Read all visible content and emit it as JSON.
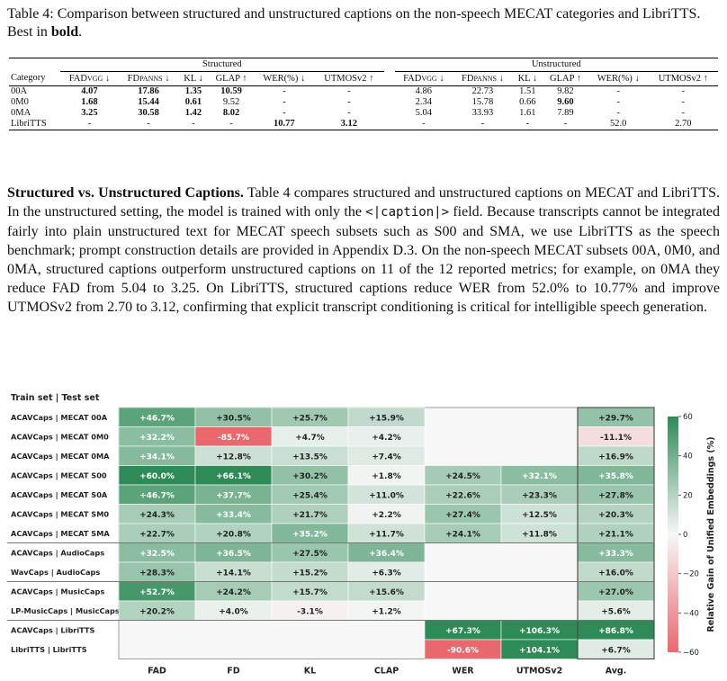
{
  "caption": {
    "label": "Table 4:",
    "text_before_bold": "Comparison between structured and unstructured captions on the non-speech MECAT categories and LibriTTS. Best in",
    "bold_word": "bold",
    "text_after_bold": "."
  },
  "table": {
    "group_structured": "Structured",
    "group_unstructured": "Unstructured",
    "header_category": "Category",
    "metric_headers": [
      {
        "base": "FAD",
        "sub": "VGG",
        "arrow": "↓"
      },
      {
        "base": "FD",
        "sub": "PANNS",
        "arrow": "↓"
      },
      {
        "base": "KL",
        "sub": "",
        "arrow": "↓"
      },
      {
        "base": "GLAP",
        "sub": "",
        "arrow": "↑"
      },
      {
        "base": "WER(%)",
        "sub": "",
        "arrow": "↓"
      },
      {
        "base": "UTMOSv2",
        "sub": "",
        "arrow": "↑"
      }
    ],
    "rows": [
      {
        "category": "00A",
        "structured": [
          {
            "v": "4.07",
            "b": true
          },
          {
            "v": "17.86",
            "b": true
          },
          {
            "v": "1.35",
            "b": true
          },
          {
            "v": "10.59",
            "b": true
          },
          {
            "v": "-",
            "b": false
          },
          {
            "v": "-",
            "b": false
          }
        ],
        "unstructured": [
          {
            "v": "4.86",
            "b": false
          },
          {
            "v": "22.73",
            "b": false
          },
          {
            "v": "1.51",
            "b": false
          },
          {
            "v": "9.82",
            "b": false
          },
          {
            "v": "-",
            "b": false
          },
          {
            "v": "-",
            "b": false
          }
        ]
      },
      {
        "category": "0M0",
        "structured": [
          {
            "v": "1.68",
            "b": true
          },
          {
            "v": "15.44",
            "b": true
          },
          {
            "v": "0.61",
            "b": true
          },
          {
            "v": "9.52",
            "b": false
          },
          {
            "v": "-",
            "b": false
          },
          {
            "v": "-",
            "b": false
          }
        ],
        "unstructured": [
          {
            "v": "2.34",
            "b": false
          },
          {
            "v": "15.78",
            "b": false
          },
          {
            "v": "0.66",
            "b": false
          },
          {
            "v": "9.60",
            "b": true
          },
          {
            "v": "-",
            "b": false
          },
          {
            "v": "-",
            "b": false
          }
        ]
      },
      {
        "category": "0MA",
        "structured": [
          {
            "v": "3.25",
            "b": true
          },
          {
            "v": "30.58",
            "b": true
          },
          {
            "v": "1.42",
            "b": true
          },
          {
            "v": "8.02",
            "b": true
          },
          {
            "v": "-",
            "b": false
          },
          {
            "v": "-",
            "b": false
          }
        ],
        "unstructured": [
          {
            "v": "5.04",
            "b": false
          },
          {
            "v": "33.93",
            "b": false
          },
          {
            "v": "1.61",
            "b": false
          },
          {
            "v": "7.89",
            "b": false
          },
          {
            "v": "-",
            "b": false
          },
          {
            "v": "-",
            "b": false
          }
        ]
      },
      {
        "category": "LibriTTS",
        "structured": [
          {
            "v": "-",
            "b": false
          },
          {
            "v": "-",
            "b": false
          },
          {
            "v": "-",
            "b": false
          },
          {
            "v": "-",
            "b": false
          },
          {
            "v": "10.77",
            "b": true
          },
          {
            "v": "3.12",
            "b": true
          }
        ],
        "unstructured": [
          {
            "v": "-",
            "b": false
          },
          {
            "v": "-",
            "b": false
          },
          {
            "v": "-",
            "b": false
          },
          {
            "v": "-",
            "b": false
          },
          {
            "v": "52.0",
            "b": false
          },
          {
            "v": "2.70",
            "b": false
          }
        ]
      }
    ]
  },
  "paragraph": {
    "run_in": "Structured vs. Unstructured Captions.",
    "text_1": " Table 4 compares structured and unstructured captions on MECAT and LibriTTS. In the unstructured setting, the model is trained with only the ",
    "code": "<|caption|>",
    "text_2": " field. Because transcripts cannot be integrated fairly into plain unstructured text for MECAT speech subsets such as S00 and SMA, we use LibriTTS as the speech benchmark; prompt construction details are provided in Appendix D.3. On the non-speech MECAT subsets 00A, 0M0, and 0MA, structured captions outperform unstructured captions on 11 of the 12 reported metrics; for example, on 0MA they reduce FAD from 5.04 to 3.25. On LibriTTS, structured captions reduce WER from 52.0% to 10.77% and improve UTMOSv2 from 2.70 to 3.12, confirming that explicit transcript conditioning is critical for intelligible speech generation."
  },
  "chart_data": {
    "type": "heatmap",
    "title": "",
    "row_axis_label": "Train set | Test set",
    "colorbar_label": "Relative Gain of Unified Embeddings (%)",
    "colorbar_range": [
      -60,
      60
    ],
    "colorbar_ticks": [
      60,
      40,
      20,
      0,
      -20,
      -40,
      -60
    ],
    "colorbar_tick_labels": [
      "60",
      "40",
      "20",
      "0",
      "−20",
      "−40",
      "−60"
    ],
    "colors": {
      "positive": "#2e8b57",
      "neutral": "#f7f7f7",
      "negative": "#e8686e"
    },
    "columns": [
      "FAD",
      "FD",
      "KL",
      "CLAP",
      "WER",
      "UTMOSv2",
      "Avg."
    ],
    "rows": [
      {
        "label": "ACAVCaps | MECAT 00A",
        "values": [
          46.7,
          30.5,
          25.7,
          15.9,
          null,
          null,
          29.7
        ],
        "texts": [
          "+46.7%",
          "+30.5%",
          "+25.7%",
          "+15.9%",
          "",
          "",
          "+29.7%"
        ]
      },
      {
        "label": "ACAVCaps | MECAT 0M0",
        "values": [
          32.2,
          -85.7,
          4.7,
          4.2,
          null,
          null,
          -11.1
        ],
        "texts": [
          "+32.2%",
          "-85.7%",
          "+4.7%",
          "+4.2%",
          "",
          "",
          "-11.1%"
        ]
      },
      {
        "label": "ACAVCaps | MECAT 0MA",
        "values": [
          34.1,
          12.8,
          13.5,
          7.4,
          null,
          null,
          16.9
        ],
        "texts": [
          "+34.1%",
          "+12.8%",
          "+13.5%",
          "+7.4%",
          "",
          "",
          "+16.9%"
        ]
      },
      {
        "label": "ACAVCaps | MECAT S00",
        "values": [
          60.0,
          66.1,
          30.2,
          1.8,
          24.5,
          32.1,
          35.8
        ],
        "texts": [
          "+60.0%",
          "+66.1%",
          "+30.2%",
          "+1.8%",
          "+24.5%",
          "+32.1%",
          "+35.8%"
        ]
      },
      {
        "label": "ACAVCaps | MECAT S0A",
        "values": [
          46.7,
          37.7,
          25.4,
          11.0,
          22.6,
          23.3,
          27.8
        ],
        "texts": [
          "+46.7%",
          "+37.7%",
          "+25.4%",
          "+11.0%",
          "+22.6%",
          "+23.3%",
          "+27.8%"
        ]
      },
      {
        "label": "ACAVCaps | MECAT SM0",
        "values": [
          24.3,
          33.4,
          21.7,
          2.2,
          27.4,
          12.5,
          20.3
        ],
        "texts": [
          "+24.3%",
          "+33.4%",
          "+21.7%",
          "+2.2%",
          "+27.4%",
          "+12.5%",
          "+20.3%"
        ]
      },
      {
        "label": "ACAVCaps | MECAT SMA",
        "values": [
          22.7,
          20.8,
          35.2,
          11.7,
          24.1,
          11.8,
          21.1
        ],
        "texts": [
          "+22.7%",
          "+20.8%",
          "+35.2%",
          "+11.7%",
          "+24.1%",
          "+11.8%",
          "+21.1%"
        ]
      },
      {
        "label": "ACAVCaps | AudioCaps",
        "values": [
          32.5,
          36.5,
          27.5,
          36.4,
          null,
          null,
          33.3
        ],
        "texts": [
          "+32.5%",
          "+36.5%",
          "+27.5%",
          "+36.4%",
          "",
          "",
          "+33.3%"
        ]
      },
      {
        "label": "WavCaps | AudioCaps",
        "values": [
          28.3,
          14.1,
          15.2,
          6.3,
          null,
          null,
          16.0
        ],
        "texts": [
          "+28.3%",
          "+14.1%",
          "+15.2%",
          "+6.3%",
          "",
          "",
          "+16.0%"
        ]
      },
      {
        "label": "ACAVCaps | MusicCaps",
        "values": [
          52.7,
          24.2,
          15.7,
          15.6,
          null,
          null,
          27.0
        ],
        "texts": [
          "+52.7%",
          "+24.2%",
          "+15.7%",
          "+15.6%",
          "",
          "",
          "+27.0%"
        ]
      },
      {
        "label": "LP-MusicCaps | MusicCaps",
        "values": [
          20.2,
          4.0,
          -3.1,
          1.2,
          null,
          null,
          5.6
        ],
        "texts": [
          "+20.2%",
          "+4.0%",
          "-3.1%",
          "+1.2%",
          "",
          "",
          "+5.6%"
        ]
      },
      {
        "label": "ACAVCaps | LibriTTS",
        "values": [
          null,
          null,
          null,
          null,
          67.3,
          106.3,
          86.8
        ],
        "texts": [
          "",
          "",
          "",
          "",
          "+67.3%",
          "+106.3%",
          "+86.8%"
        ]
      },
      {
        "label": "LibriTTS | LibriTTS",
        "values": [
          null,
          null,
          null,
          null,
          -90.6,
          104.1,
          6.7
        ],
        "texts": [
          "",
          "",
          "",
          "",
          "-90.6%",
          "+104.1%",
          "+6.7%"
        ]
      }
    ],
    "row_group_breaks": [
      7,
      9,
      11
    ]
  }
}
